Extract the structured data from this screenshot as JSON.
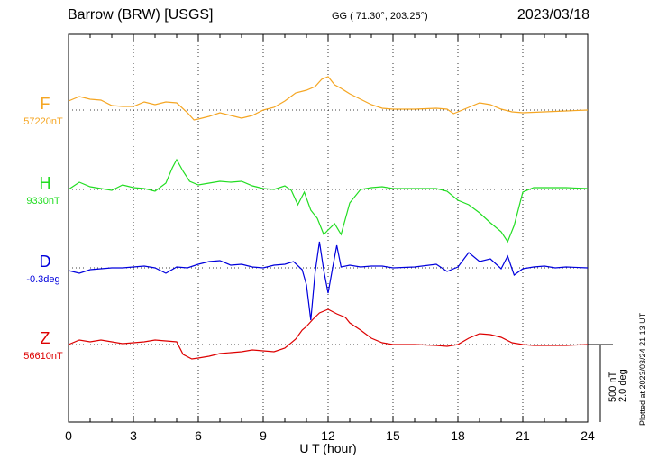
{
  "header": {
    "station": "Barrow (BRW)  [USGS]",
    "coords": "GG ( 71.30°, 203.25°)",
    "date": "2023/03/18"
  },
  "plotted_note": "Plotted at 2023/03/24 21:13 UT",
  "colors": {
    "F": "#f5a623",
    "H": "#22dd22",
    "D": "#0000dd",
    "Z": "#dd0000"
  },
  "chart_data": {
    "type": "line",
    "xlabel": "U T (hour)",
    "xlim": [
      0,
      24
    ],
    "xticks": [
      "0",
      "3",
      "6",
      "9",
      "12",
      "15",
      "18",
      "21",
      "24"
    ],
    "scale_bar": {
      "nT": "500 nT",
      "deg": "2.0 deg"
    },
    "series": [
      {
        "name": "F",
        "baseline": "57220nT",
        "color": "#f5a623",
        "points": [
          [
            0,
            112
          ],
          [
            0.5,
            107
          ],
          [
            1,
            110
          ],
          [
            1.5,
            111
          ],
          [
            2,
            117
          ],
          [
            2.5,
            118
          ],
          [
            3,
            118
          ],
          [
            3.5,
            113
          ],
          [
            4,
            116
          ],
          [
            4.5,
            113
          ],
          [
            5,
            114
          ],
          [
            5.5,
            125
          ],
          [
            5.8,
            133
          ],
          [
            6,
            132
          ],
          [
            6.5,
            129
          ],
          [
            7,
            125
          ],
          [
            7.5,
            128
          ],
          [
            8,
            131
          ],
          [
            8.5,
            128
          ],
          [
            9,
            122
          ],
          [
            9.5,
            119
          ],
          [
            10,
            112
          ],
          [
            10.5,
            103
          ],
          [
            11,
            100
          ],
          [
            11.4,
            96
          ],
          [
            11.7,
            88
          ],
          [
            12,
            85
          ],
          [
            12.3,
            94
          ],
          [
            12.6,
            98
          ],
          [
            13,
            104
          ],
          [
            13.5,
            110
          ],
          [
            14,
            116
          ],
          [
            14.5,
            120
          ],
          [
            15,
            121
          ],
          [
            16,
            121
          ],
          [
            17,
            120
          ],
          [
            17.5,
            121
          ],
          [
            17.8,
            126
          ],
          [
            18,
            124
          ],
          [
            18.5,
            119
          ],
          [
            19,
            114
          ],
          [
            19.5,
            116
          ],
          [
            20,
            121
          ],
          [
            20.5,
            124
          ],
          [
            21,
            125
          ],
          [
            22,
            124
          ],
          [
            23,
            123
          ],
          [
            24,
            122
          ]
        ]
      },
      {
        "name": "H",
        "baseline": "9330nT",
        "color": "#22dd22",
        "points": [
          [
            0,
            210
          ],
          [
            0.5,
            202
          ],
          [
            1,
            207
          ],
          [
            1.5,
            209
          ],
          [
            2,
            211
          ],
          [
            2.5,
            205
          ],
          [
            3,
            208
          ],
          [
            3.5,
            209
          ],
          [
            4,
            212
          ],
          [
            4.5,
            203
          ],
          [
            4.8,
            186
          ],
          [
            5,
            177
          ],
          [
            5.3,
            190
          ],
          [
            5.6,
            201
          ],
          [
            6,
            205
          ],
          [
            6.5,
            203
          ],
          [
            7,
            201
          ],
          [
            7.5,
            202
          ],
          [
            8,
            201
          ],
          [
            8.5,
            206
          ],
          [
            9,
            209
          ],
          [
            9.5,
            210
          ],
          [
            10,
            206
          ],
          [
            10.3,
            211
          ],
          [
            10.6,
            227
          ],
          [
            10.9,
            213
          ],
          [
            11.2,
            233
          ],
          [
            11.5,
            242
          ],
          [
            11.8,
            260
          ],
          [
            12,
            255
          ],
          [
            12.3,
            248
          ],
          [
            12.6,
            260
          ],
          [
            13,
            225
          ],
          [
            13.5,
            210
          ],
          [
            14,
            208
          ],
          [
            14.5,
            207
          ],
          [
            15,
            209
          ],
          [
            16,
            209
          ],
          [
            17,
            209
          ],
          [
            17.5,
            212
          ],
          [
            18,
            222
          ],
          [
            18.5,
            227
          ],
          [
            19,
            236
          ],
          [
            19.5,
            247
          ],
          [
            20,
            257
          ],
          [
            20.3,
            268
          ],
          [
            20.6,
            250
          ],
          [
            21,
            213
          ],
          [
            21.5,
            208
          ],
          [
            22,
            208
          ],
          [
            23,
            208
          ],
          [
            24,
            209
          ]
        ]
      },
      {
        "name": "D",
        "baseline": "-0.3deg",
        "color": "#0000dd",
        "points": [
          [
            0,
            300
          ],
          [
            0.5,
            303
          ],
          [
            1,
            299
          ],
          [
            1.5,
            298
          ],
          [
            2,
            297
          ],
          [
            2.5,
            297
          ],
          [
            3,
            296
          ],
          [
            3.5,
            295
          ],
          [
            4,
            297
          ],
          [
            4.5,
            303
          ],
          [
            5,
            296
          ],
          [
            5.5,
            297
          ],
          [
            6,
            293
          ],
          [
            6.5,
            290
          ],
          [
            7,
            289
          ],
          [
            7.5,
            294
          ],
          [
            8,
            293
          ],
          [
            8.5,
            296
          ],
          [
            9,
            297
          ],
          [
            9.5,
            294
          ],
          [
            10,
            293
          ],
          [
            10.4,
            290
          ],
          [
            10.8,
            299
          ],
          [
            11,
            316
          ],
          [
            11.2,
            355
          ],
          [
            11.4,
            302
          ],
          [
            11.6,
            268
          ],
          [
            11.8,
            300
          ],
          [
            12,
            325
          ],
          [
            12.2,
            298
          ],
          [
            12.4,
            272
          ],
          [
            12.6,
            296
          ],
          [
            13,
            294
          ],
          [
            13.5,
            296
          ],
          [
            14,
            295
          ],
          [
            14.5,
            295
          ],
          [
            15,
            297
          ],
          [
            16,
            296
          ],
          [
            17,
            293
          ],
          [
            17.5,
            301
          ],
          [
            18,
            296
          ],
          [
            18.5,
            280
          ],
          [
            19,
            290
          ],
          [
            19.5,
            287
          ],
          [
            20,
            298
          ],
          [
            20.3,
            284
          ],
          [
            20.6,
            305
          ],
          [
            21,
            298
          ],
          [
            21.5,
            296
          ],
          [
            22,
            295
          ],
          [
            22.5,
            297
          ],
          [
            23,
            296
          ],
          [
            24,
            297
          ]
        ]
      },
      {
        "name": "Z",
        "baseline": "56610nT",
        "color": "#dd0000",
        "points": [
          [
            0,
            382
          ],
          [
            0.5,
            377
          ],
          [
            1,
            379
          ],
          [
            1.5,
            377
          ],
          [
            2,
            379
          ],
          [
            2.5,
            381
          ],
          [
            3,
            380
          ],
          [
            3.5,
            379
          ],
          [
            4,
            377
          ],
          [
            4.5,
            378
          ],
          [
            5,
            379
          ],
          [
            5.3,
            393
          ],
          [
            5.7,
            398
          ],
          [
            6,
            397
          ],
          [
            6.5,
            395
          ],
          [
            7,
            392
          ],
          [
            7.5,
            391
          ],
          [
            8,
            390
          ],
          [
            8.5,
            388
          ],
          [
            9,
            389
          ],
          [
            9.5,
            390
          ],
          [
            10,
            386
          ],
          [
            10.5,
            376
          ],
          [
            10.8,
            366
          ],
          [
            11,
            362
          ],
          [
            11.3,
            354
          ],
          [
            11.6,
            347
          ],
          [
            12,
            343
          ],
          [
            12.4,
            348
          ],
          [
            12.8,
            352
          ],
          [
            13,
            358
          ],
          [
            13.5,
            366
          ],
          [
            14,
            375
          ],
          [
            14.5,
            380
          ],
          [
            15,
            382
          ],
          [
            16,
            382
          ],
          [
            17,
            383
          ],
          [
            17.5,
            384
          ],
          [
            18,
            382
          ],
          [
            18.5,
            375
          ],
          [
            19,
            370
          ],
          [
            19.5,
            371
          ],
          [
            20,
            374
          ],
          [
            20.5,
            380
          ],
          [
            21,
            382
          ],
          [
            21.5,
            383
          ],
          [
            22,
            383
          ],
          [
            23,
            383
          ],
          [
            24,
            382
          ]
        ]
      }
    ]
  }
}
